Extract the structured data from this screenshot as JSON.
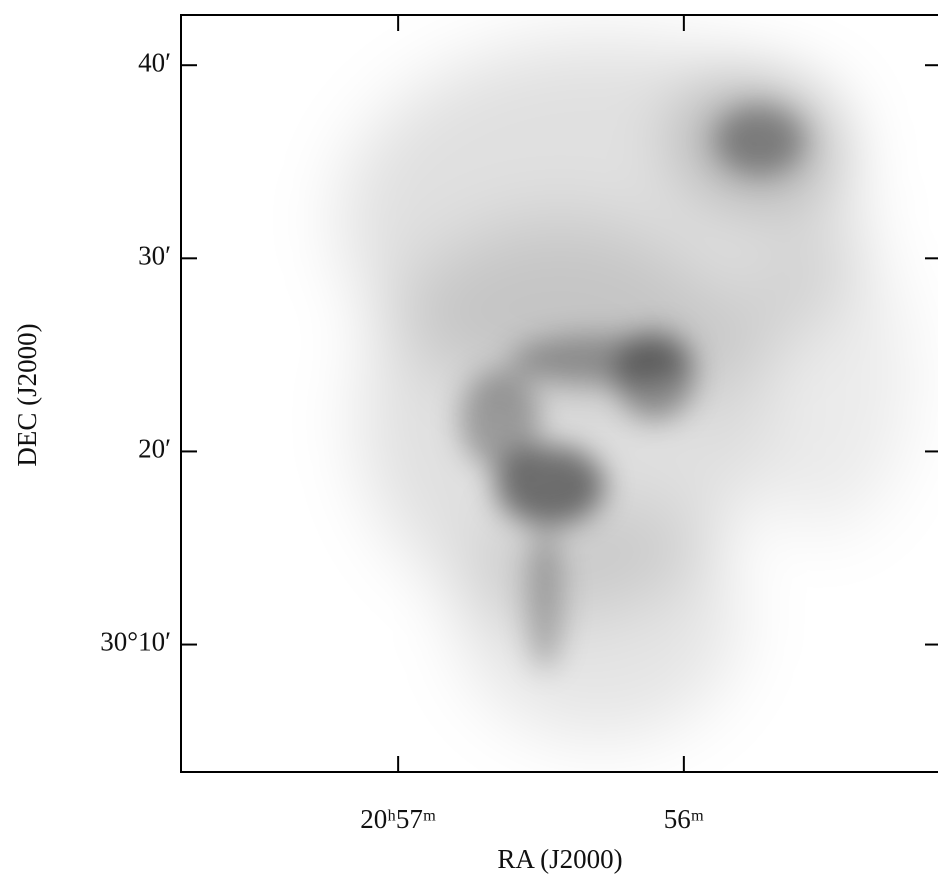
{
  "chart_data": {
    "type": "image",
    "xlabel": "RA (J2000)",
    "ylabel": "DEC (J2000)",
    "xlim": [
      57.76,
      55.1
    ],
    "xticks": [
      {
        "value": 57,
        "label": "20ʰ57ᵐ"
      },
      {
        "value": 56,
        "label": "56ᵐ"
      }
    ],
    "ylim": [
      3.4,
      42.6
    ],
    "yticks": [
      {
        "value": 40,
        "label": "40′"
      },
      {
        "value": 30,
        "label": "30′"
      },
      {
        "value": 20,
        "label": "20′"
      },
      {
        "value": 10,
        "label": "30°10′"
      }
    ]
  }
}
